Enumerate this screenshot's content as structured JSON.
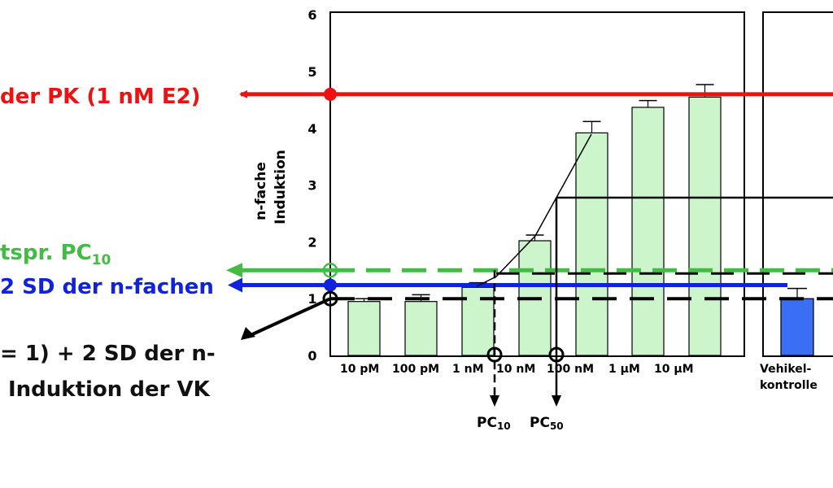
{
  "chart_data": {
    "type": "bar",
    "ylabel_line1": "n-fache",
    "ylabel_line2": "Induktion",
    "ylim": [
      0,
      6
    ],
    "yticks": [
      "0",
      "1",
      "2",
      "3",
      "4",
      "5",
      "6"
    ],
    "categories": [
      "10 pM",
      "100 pM",
      "1 nM",
      "10 nM",
      "100 nM",
      "1 µM",
      "10 µM"
    ],
    "values": [
      0.95,
      0.95,
      1.2,
      2.02,
      3.92,
      4.37,
      4.55
    ],
    "errors": [
      0.05,
      0.12,
      0.08,
      0.1,
      0.2,
      0.12,
      0.22
    ],
    "control": {
      "label_line1": "Vehikel-",
      "label_line2": "kontrolle",
      "value": 1.0,
      "error": 0.18
    },
    "reference_lines": {
      "pk_level": 4.6,
      "pc10_level": 1.5,
      "sd_level": 1.24,
      "vk_level": 1.0,
      "pc50_level": 2.78
    },
    "colors": {
      "bar": "#ccf5cc",
      "control_bar": "#3a6ef5",
      "pk": "#ee1111",
      "pc10": "#44bb44",
      "sd": "#1122dd",
      "axis": "#000000"
    }
  },
  "annotations": {
    "pk_label": "der PK (1 nM E2)",
    "pc10_label": "tspr. PC",
    "pc10_sub": "10",
    "sd_label": "2 SD der n-fachen",
    "vk_line1": "= 1) + 2 SD der n-",
    "vk_line2": "Induktion der VK",
    "pc10_marker": "PC",
    "pc10_marker_sub": "10",
    "pc50_marker": "PC",
    "pc50_marker_sub": "50"
  }
}
